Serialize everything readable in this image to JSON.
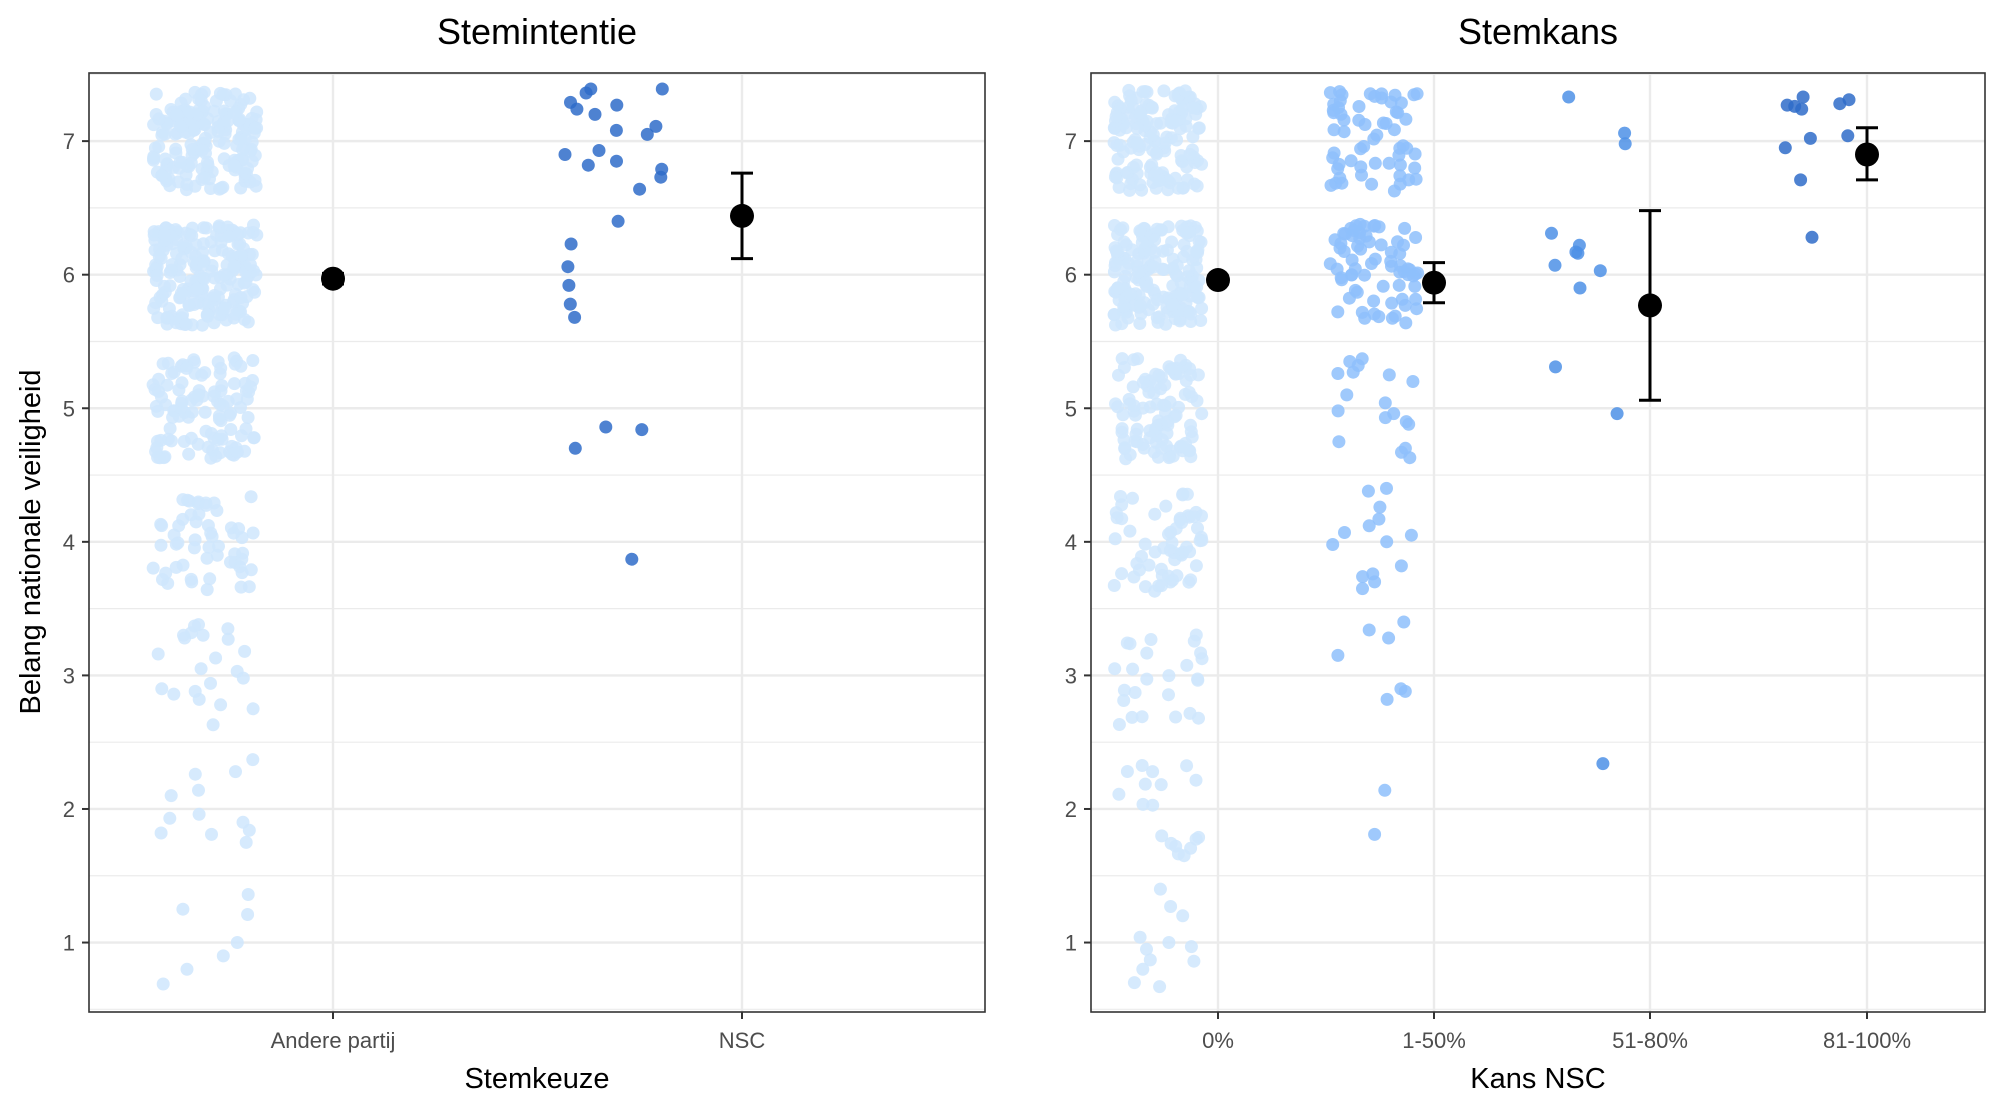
{
  "chart_data": [
    {
      "type": "scatter",
      "title": "Stemintentie",
      "xlabel": "Stemkeuze",
      "ylabel": "Belang nationale veiligheid",
      "categories": [
        "Andere partij",
        "NSC"
      ],
      "yticks": [
        1,
        2,
        3,
        4,
        5,
        6,
        7
      ],
      "ylim": [
        0.48,
        7.51
      ],
      "grid": true,
      "jitter_note": "jittered individual responses per category with mean and 95% CI",
      "point_colors": [
        "#cfe6fd",
        "#2f6cc9"
      ],
      "summary": [
        {
          "category": "Andere partij",
          "mean": 5.97,
          "ci_low": 5.93,
          "ci_high": 6.01
        },
        {
          "category": "NSC",
          "mean": 6.44,
          "ci_low": 6.12,
          "ci_high": 6.76
        }
      ],
      "points": [
        {
          "category": "Andere partij",
          "dense_bands": [
            {
              "center": 7.0,
              "half_width": 0.37,
              "count": 180
            },
            {
              "center": 6.0,
              "half_width": 0.38,
              "count": 200
            },
            {
              "center": 5.0,
              "half_width": 0.38,
              "count": 110
            },
            {
              "center": 4.0,
              "half_width": 0.36,
              "count": 55
            }
          ],
          "values": [
            3.38,
            3.35,
            3.3,
            3.27,
            3.18,
            3.16,
            3.13,
            3.05,
            3.03,
            2.98,
            2.94,
            2.9,
            2.88,
            2.86,
            2.82,
            2.78,
            2.75,
            2.63,
            3.32,
            3.28,
            3.3,
            3.37,
            2.37,
            2.28,
            2.26,
            2.14,
            2.1,
            1.96,
            1.93,
            1.9,
            1.84,
            1.82,
            1.81,
            1.75,
            1.36,
            1.25,
            1.21,
            1.0,
            0.9,
            0.8,
            0.69
          ]
        },
        {
          "category": "NSC",
          "values": [
            7.39,
            7.39,
            7.36,
            7.29,
            7.27,
            7.24,
            7.2,
            7.11,
            7.08,
            7.05,
            6.93,
            6.9,
            6.85,
            6.82,
            6.79,
            6.73,
            6.64,
            6.4,
            6.23,
            6.06,
            5.92,
            5.78,
            5.68,
            4.86,
            4.84,
            4.7,
            3.87
          ]
        }
      ]
    },
    {
      "type": "scatter",
      "title": "Stemkans",
      "xlabel": "Kans NSC",
      "ylabel": "",
      "categories": [
        "0%",
        "1-50%",
        "51-80%",
        "81-100%"
      ],
      "yticks": [
        1,
        2,
        3,
        4,
        5,
        6,
        7
      ],
      "ylim": [
        0.48,
        7.51
      ],
      "grid": true,
      "point_colors": [
        "#cfe6fd",
        "#8ec0fb",
        "#4d90e6",
        "#2f6cc9"
      ],
      "summary": [
        {
          "category": "0%",
          "mean": 5.96,
          "ci_low": 5.93,
          "ci_high": 5.99
        },
        {
          "category": "1-50%",
          "mean": 5.94,
          "ci_low": 5.79,
          "ci_high": 6.09
        },
        {
          "category": "51-80%",
          "mean": 5.77,
          "ci_low": 5.06,
          "ci_high": 6.48
        },
        {
          "category": "81-100%",
          "mean": 6.9,
          "ci_low": 6.71,
          "ci_high": 7.1
        }
      ],
      "points": [
        {
          "category": "0%",
          "dense_bands": [
            {
              "center": 7.0,
              "half_width": 0.38,
              "count": 150
            },
            {
              "center": 6.0,
              "half_width": 0.38,
              "count": 180
            },
            {
              "center": 5.0,
              "half_width": 0.38,
              "count": 100
            },
            {
              "center": 4.0,
              "half_width": 0.37,
              "count": 60
            },
            {
              "center": 3.0,
              "half_width": 0.37,
              "count": 25
            },
            {
              "center": 2.0,
              "half_width": 0.36,
              "count": 18
            }
          ],
          "values": [
            1.4,
            1.27,
            1.2,
            1.04,
            1.0,
            0.97,
            0.95,
            0.87,
            0.86,
            0.8,
            0.7,
            0.67
          ]
        },
        {
          "category": "1-50%",
          "dense_bands": [
            {
              "center": 7.0,
              "half_width": 0.38,
              "count": 60
            },
            {
              "center": 6.0,
              "half_width": 0.38,
              "count": 70
            }
          ],
          "values": [
            5.37,
            5.35,
            5.32,
            5.27,
            5.26,
            5.25,
            5.2,
            5.1,
            5.04,
            4.98,
            4.96,
            4.93,
            4.9,
            4.88,
            4.75,
            4.7,
            4.67,
            4.63,
            4.4,
            4.38,
            4.26,
            4.17,
            4.12,
            4.07,
            4.05,
            4.0,
            3.98,
            3.82,
            3.76,
            3.74,
            3.7,
            3.65,
            3.4,
            3.34,
            3.28,
            3.15,
            2.9,
            2.88,
            2.82,
            2.14,
            1.81
          ]
        },
        {
          "category": "51-80%",
          "values": [
            7.33,
            7.06,
            6.98,
            6.31,
            6.22,
            6.17,
            6.16,
            6.07,
            6.03,
            5.9,
            5.31,
            4.96,
            2.34
          ]
        },
        {
          "category": "81-100%",
          "values": [
            7.33,
            7.31,
            7.28,
            7.27,
            7.26,
            7.24,
            7.04,
            7.02,
            6.95,
            6.71,
            6.28
          ]
        }
      ]
    }
  ]
}
